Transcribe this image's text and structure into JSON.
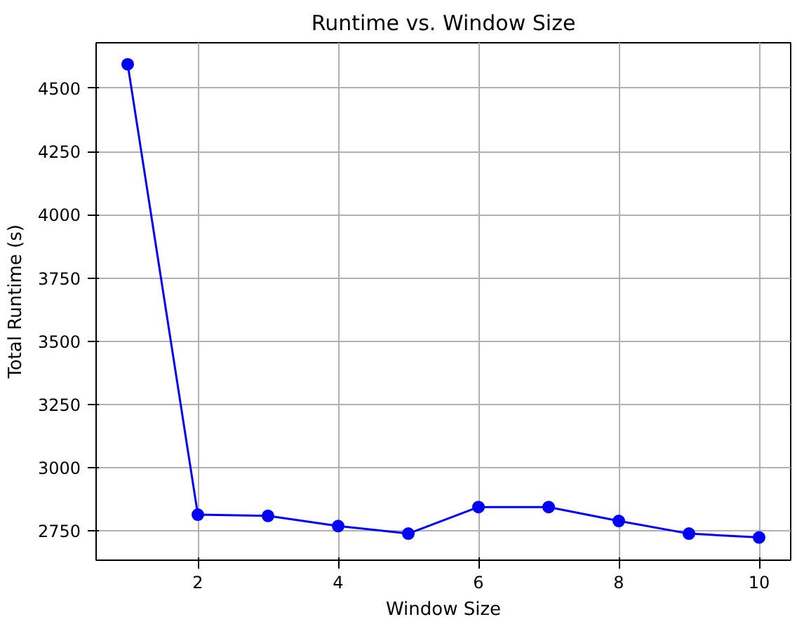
{
  "chart_data": {
    "type": "line",
    "title": "Runtime vs. Window Size",
    "xlabel": "Window Size",
    "ylabel": "Total Runtime (s)",
    "x": [
      1,
      2,
      3,
      4,
      5,
      6,
      7,
      8,
      9,
      10
    ],
    "series": [
      {
        "color": "#0000ff",
        "values": [
          4595,
          2815,
          2810,
          2770,
          2740,
          2845,
          2845,
          2790,
          2740,
          2725
        ]
      }
    ],
    "xlim": [
      0.55,
      10.45
    ],
    "ylim": [
      2635,
      4680
    ],
    "xticks": [
      2,
      4,
      6,
      8,
      10
    ],
    "yticks": [
      2750,
      3000,
      3250,
      3500,
      3750,
      4000,
      4250,
      4500
    ],
    "grid": true,
    "marker": "circle",
    "line_style": "solid"
  }
}
